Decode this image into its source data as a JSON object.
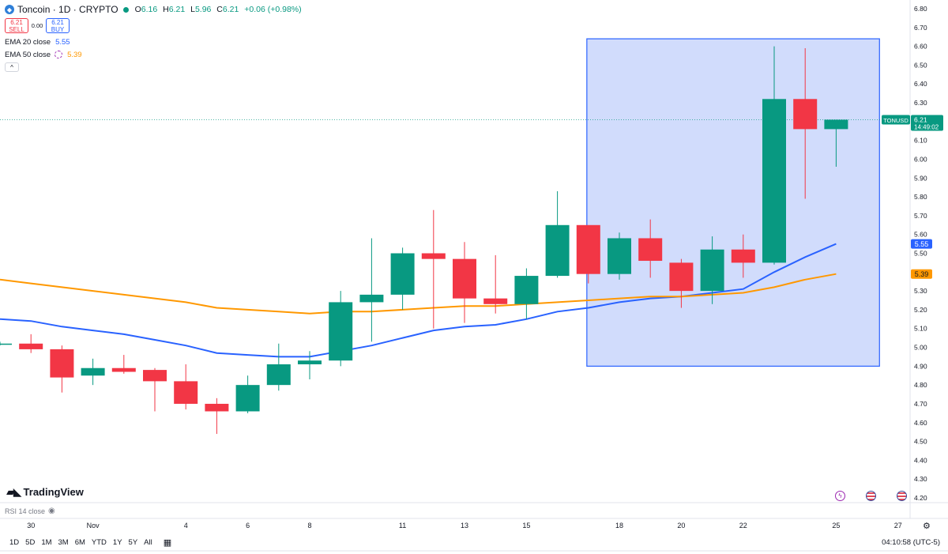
{
  "header": {
    "symbol_title": "Toncoin · 1D · CRYPTO",
    "ohlc": {
      "o_label": "O",
      "o": "6.16",
      "h_label": "H",
      "h": "6.21",
      "l_label": "L",
      "l": "5.96",
      "c_label": "C",
      "c": "6.21",
      "change": "+0.06 (+0.98%)"
    },
    "sell_price": "6.21",
    "sell_label": "SELL",
    "spread": "0.00",
    "buy_price": "6.21",
    "buy_label": "BUY"
  },
  "indicators": [
    {
      "label": "EMA 20 close",
      "value": "5.55",
      "color": "#2962ff"
    },
    {
      "label": "EMA 50 close",
      "value": "5.39",
      "color": "#ff9800"
    }
  ],
  "collapse_glyph": "^",
  "brand": "TradingView",
  "rsi_label": "RSI 14 close",
  "price_tag": {
    "symbol": "TONUSD",
    "price": "6.21",
    "countdown": "14:49:02",
    "color": "#089981"
  },
  "ema_tags": [
    {
      "value": "5.55",
      "color": "#2962ff"
    },
    {
      "value": "5.39",
      "color": "#ff9800"
    }
  ],
  "range_buttons": [
    "1D",
    "5D",
    "1M",
    "3M",
    "6M",
    "YTD",
    "1Y",
    "5Y",
    "All"
  ],
  "clock": "04:10:58 (UTC-5)",
  "icons": {
    "settings": "gear-icon",
    "date_range": "calendar-icon",
    "event_bolt": "lightning-icon",
    "event_flag": "us-flag-icon"
  },
  "colors": {
    "up": "#089981",
    "down": "#f23645",
    "ema20": "#2962ff",
    "ema50": "#ff9800",
    "rect_fill": "#c9d6fb",
    "rect_stroke": "#2962ff"
  },
  "chart_data": {
    "type": "candlestick",
    "title": "Toncoin · 1D · CRYPTO",
    "y_ticks": [
      "4.20",
      "4.30",
      "4.40",
      "4.50",
      "4.60",
      "4.70",
      "4.80",
      "4.90",
      "5.00",
      "5.10",
      "5.20",
      "5.30",
      "5.40",
      "5.50",
      "5.60",
      "5.70",
      "5.80",
      "5.90",
      "6.00",
      "6.10",
      "6.20",
      "6.30",
      "6.40",
      "6.50",
      "6.60",
      "6.70",
      "6.80"
    ],
    "ylim": [
      4.2,
      6.8
    ],
    "x_ticks": [
      {
        "label": "30",
        "bar": 1
      },
      {
        "label": "Nov",
        "bar": 3
      },
      {
        "label": "4",
        "bar": 6
      },
      {
        "label": "6",
        "bar": 8
      },
      {
        "label": "8",
        "bar": 10
      },
      {
        "label": "11",
        "bar": 13
      },
      {
        "label": "13",
        "bar": 15
      },
      {
        "label": "15",
        "bar": 17
      },
      {
        "label": "18",
        "bar": 20
      },
      {
        "label": "20",
        "bar": 22
      },
      {
        "label": "22",
        "bar": 24
      },
      {
        "label": "25",
        "bar": 27
      },
      {
        "label": "27",
        "bar": 29
      }
    ],
    "candles": [
      {
        "o": 5.02,
        "h": 5.03,
        "l": 5.01,
        "c": 5.02
      },
      {
        "o": 5.02,
        "h": 5.07,
        "l": 4.97,
        "c": 4.99
      },
      {
        "o": 4.99,
        "h": 5.01,
        "l": 4.76,
        "c": 4.84
      },
      {
        "o": 4.85,
        "h": 4.94,
        "l": 4.8,
        "c": 4.89
      },
      {
        "o": 4.89,
        "h": 4.96,
        "l": 4.86,
        "c": 4.87
      },
      {
        "o": 4.88,
        "h": 4.89,
        "l": 4.66,
        "c": 4.82
      },
      {
        "o": 4.82,
        "h": 4.91,
        "l": 4.67,
        "c": 4.7
      },
      {
        "o": 4.7,
        "h": 4.73,
        "l": 4.54,
        "c": 4.66
      },
      {
        "o": 4.66,
        "h": 4.85,
        "l": 4.65,
        "c": 4.8
      },
      {
        "o": 4.8,
        "h": 5.02,
        "l": 4.77,
        "c": 4.91
      },
      {
        "o": 4.91,
        "h": 4.98,
        "l": 4.83,
        "c": 4.93
      },
      {
        "o": 4.93,
        "h": 5.3,
        "l": 4.9,
        "c": 5.24
      },
      {
        "o": 5.24,
        "h": 5.58,
        "l": 5.03,
        "c": 5.28
      },
      {
        "o": 5.28,
        "h": 5.53,
        "l": 5.2,
        "c": 5.5
      },
      {
        "o": 5.5,
        "h": 5.73,
        "l": 5.1,
        "c": 5.47
      },
      {
        "o": 5.47,
        "h": 5.56,
        "l": 5.13,
        "c": 5.26
      },
      {
        "o": 5.26,
        "h": 5.49,
        "l": 5.18,
        "c": 5.23
      },
      {
        "o": 5.23,
        "h": 5.42,
        "l": 5.15,
        "c": 5.38
      },
      {
        "o": 5.38,
        "h": 5.83,
        "l": 5.37,
        "c": 5.65
      },
      {
        "o": 5.65,
        "h": 5.64,
        "l": 5.34,
        "c": 5.39
      },
      {
        "o": 5.39,
        "h": 5.61,
        "l": 5.36,
        "c": 5.58
      },
      {
        "o": 5.58,
        "h": 5.68,
        "l": 5.37,
        "c": 5.46
      },
      {
        "o": 5.45,
        "h": 5.47,
        "l": 5.21,
        "c": 5.3
      },
      {
        "o": 5.3,
        "h": 5.59,
        "l": 5.23,
        "c": 5.52
      },
      {
        "o": 5.52,
        "h": 5.6,
        "l": 5.37,
        "c": 5.45
      },
      {
        "o": 5.45,
        "h": 6.6,
        "l": 5.44,
        "c": 6.32
      },
      {
        "o": 6.32,
        "h": 6.59,
        "l": 5.79,
        "c": 6.16
      },
      {
        "o": 6.16,
        "h": 6.21,
        "l": 5.96,
        "c": 6.21
      }
    ],
    "series": [
      {
        "name": "EMA 20 close",
        "values": [
          5.15,
          5.14,
          5.11,
          5.09,
          5.07,
          5.04,
          5.01,
          4.97,
          4.96,
          4.95,
          4.95,
          4.98,
          5.01,
          5.05,
          5.09,
          5.11,
          5.12,
          5.15,
          5.19,
          5.21,
          5.24,
          5.26,
          5.27,
          5.29,
          5.31,
          5.4,
          5.48,
          5.55
        ]
      },
      {
        "name": "EMA 50 close",
        "values": [
          5.36,
          5.34,
          5.32,
          5.3,
          5.28,
          5.26,
          5.24,
          5.21,
          5.2,
          5.19,
          5.18,
          5.19,
          5.19,
          5.2,
          5.21,
          5.22,
          5.22,
          5.23,
          5.24,
          5.25,
          5.26,
          5.27,
          5.27,
          5.28,
          5.29,
          5.32,
          5.36,
          5.39
        ]
      }
    ],
    "annotation_rectangle": {
      "bar_start": 18.95,
      "bar_end": 28.4,
      "y_top": 6.64,
      "y_bottom": 4.9
    },
    "last_price": 6.21,
    "grid": false
  }
}
